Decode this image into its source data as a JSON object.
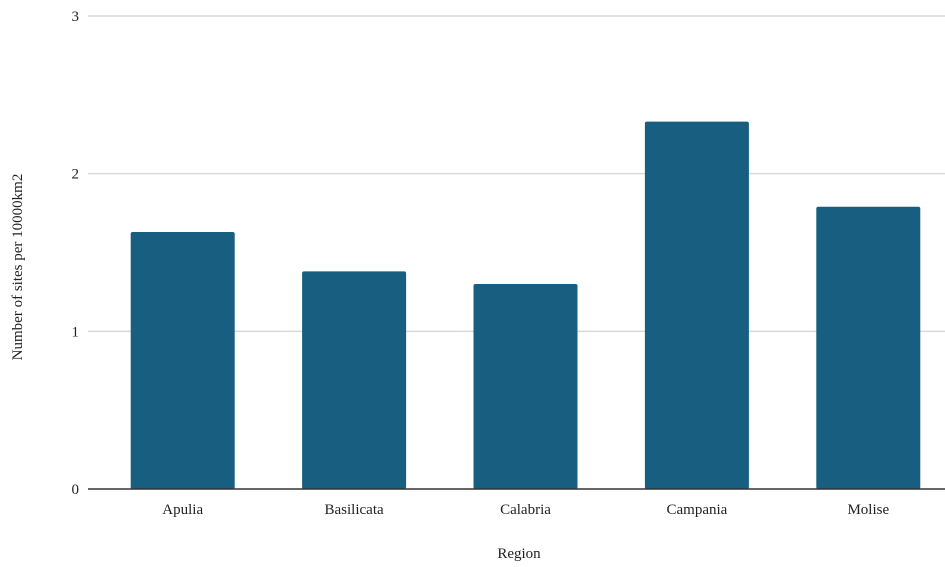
{
  "chart_data": {
    "type": "bar",
    "categories": [
      "Apulia",
      "Basilicata",
      "Calabria",
      "Campania",
      "Molise"
    ],
    "values": [
      1.63,
      1.38,
      1.3,
      2.33,
      1.79
    ],
    "xlabel": "Region",
    "ylabel": "Number of sites per 10000km2",
    "ylim": [
      0,
      3
    ],
    "yticks": [
      "0",
      "1",
      "2",
      "3"
    ],
    "grid": true,
    "bar_color": "#175e80",
    "grid_color": "#d9d9d9",
    "axis_color": "#333333"
  }
}
